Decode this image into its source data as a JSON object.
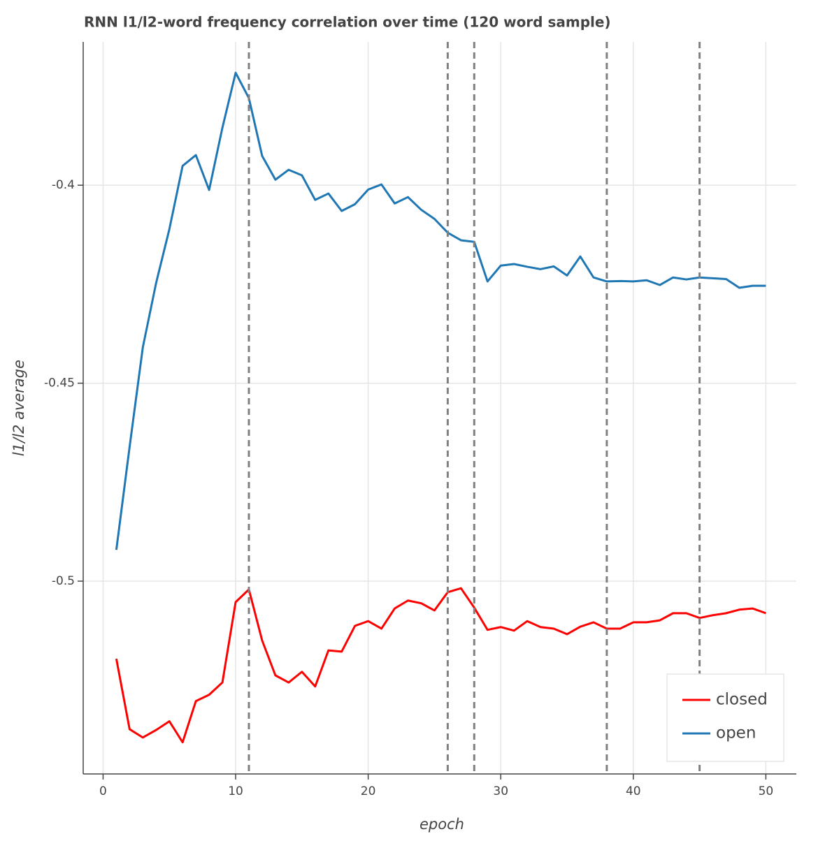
{
  "chart_data": {
    "type": "line",
    "title": "RNN l1/l2-word frequency correlation over time (120 word sample)",
    "x_label": "epoch",
    "y_label": "l1/l2 average",
    "x": [
      1,
      2,
      3,
      4,
      5,
      6,
      7,
      8,
      9,
      10,
      11,
      12,
      13,
      14,
      15,
      16,
      17,
      18,
      19,
      20,
      21,
      22,
      23,
      24,
      25,
      26,
      27,
      28,
      29,
      30,
      31,
      32,
      33,
      34,
      35,
      36,
      37,
      38,
      39,
      40,
      41,
      42,
      43,
      44,
      45,
      46,
      47,
      48,
      49,
      50
    ],
    "series": [
      {
        "name": "closed",
        "color": "#ff0000",
        "values": [
          -0.5196,
          -0.5374,
          -0.5395,
          -0.5376,
          -0.5354,
          -0.5407,
          -0.5303,
          -0.5287,
          -0.5256,
          -0.5053,
          -0.5021,
          -0.515,
          -0.5238,
          -0.5256,
          -0.5229,
          -0.5266,
          -0.5175,
          -0.5178,
          -0.5113,
          -0.5101,
          -0.512,
          -0.5069,
          -0.5049,
          -0.5056,
          -0.5074,
          -0.5028,
          -0.5018,
          -0.5067,
          -0.5123,
          -0.5116,
          -0.5125,
          -0.5101,
          -0.5116,
          -0.512,
          -0.5134,
          -0.5115,
          -0.5104,
          -0.512,
          -0.512,
          -0.5104,
          -0.5104,
          -0.5099,
          -0.5081,
          -0.5081,
          -0.5093,
          -0.5086,
          -0.5081,
          -0.5072,
          -0.5069,
          -0.5081
        ]
      },
      {
        "name": "open",
        "color": "#1f77b4",
        "values": [
          -0.4921,
          -0.4661,
          -0.4409,
          -0.4247,
          -0.4111,
          -0.3951,
          -0.3924,
          -0.4012,
          -0.3855,
          -0.3716,
          -0.378,
          -0.3926,
          -0.3986,
          -0.3961,
          -0.3975,
          -0.4037,
          -0.4021,
          -0.4065,
          -0.4048,
          -0.4011,
          -0.3998,
          -0.4046,
          -0.403,
          -0.4062,
          -0.4085,
          -0.412,
          -0.4139,
          -0.4143,
          -0.4243,
          -0.4203,
          -0.4199,
          -0.4206,
          -0.4212,
          -0.4205,
          -0.4228,
          -0.418,
          -0.4233,
          -0.4243,
          -0.4242,
          -0.4243,
          -0.424,
          -0.4252,
          -0.4233,
          -0.4238,
          -0.4233,
          -0.4235,
          -0.4237,
          -0.4259,
          -0.4254,
          -0.4254
        ]
      }
    ],
    "vlines": [
      11,
      26,
      28,
      38,
      45
    ],
    "vline_color": "#808080",
    "xlim": [
      -1.5,
      52.3
    ],
    "ylim": [
      -0.5487,
      -0.3638
    ],
    "xticks": [
      0,
      10,
      20,
      30,
      40,
      50
    ],
    "yticks": [
      -0.5,
      -0.45,
      -0.4
    ],
    "grid": true,
    "legend": "bottom-right"
  }
}
